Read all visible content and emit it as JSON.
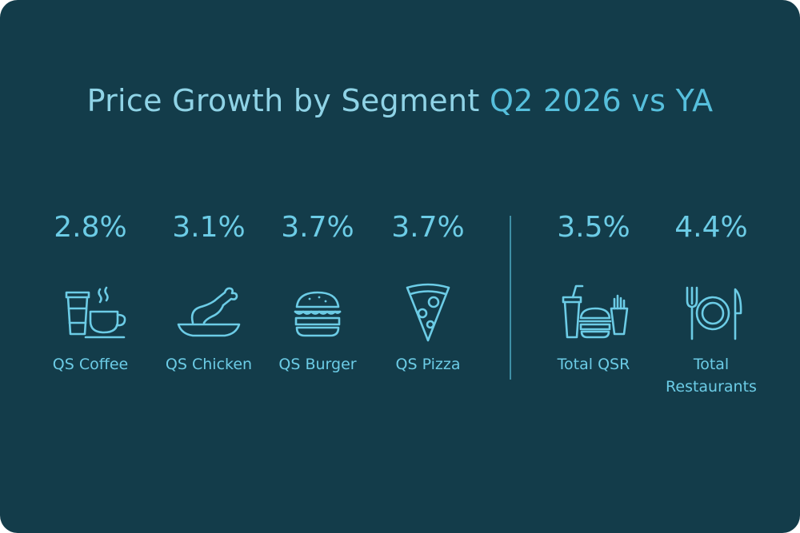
{
  "title": {
    "part1": "Price Growth by Segment",
    "part2": "Q2 2026 vs YA"
  },
  "colors": {
    "background": "#133c4a",
    "title": "#8fd3e6",
    "title_highlight": "#56bfdc",
    "accent": "#6ccce6"
  },
  "chart_data": {
    "type": "table",
    "title": "Price Growth by Segment Q2 2026 vs YA",
    "categories": [
      "QS Coffee",
      "QS Chicken",
      "QS Burger",
      "QS Pizza",
      "Total QSR",
      "Total Restaurants"
    ],
    "values": [
      2.8,
      3.1,
      3.7,
      3.7,
      3.5,
      4.4
    ],
    "unit": "%"
  },
  "segments": [
    {
      "value": "2.8%",
      "label": "QS Coffee",
      "icon": "coffee-icon"
    },
    {
      "value": "3.1%",
      "label": "QS Chicken",
      "icon": "chicken-icon"
    },
    {
      "value": "3.7%",
      "label": "QS Burger",
      "icon": "burger-icon"
    },
    {
      "value": "3.7%",
      "label": "QS Pizza",
      "icon": "pizza-icon"
    }
  ],
  "totals": [
    {
      "value": "3.5%",
      "label": "Total QSR",
      "icon": "fast-food-meal-icon"
    },
    {
      "value": "4.4%",
      "label": "Total\nRestaurants",
      "icon": "plate-cutlery-icon"
    }
  ]
}
